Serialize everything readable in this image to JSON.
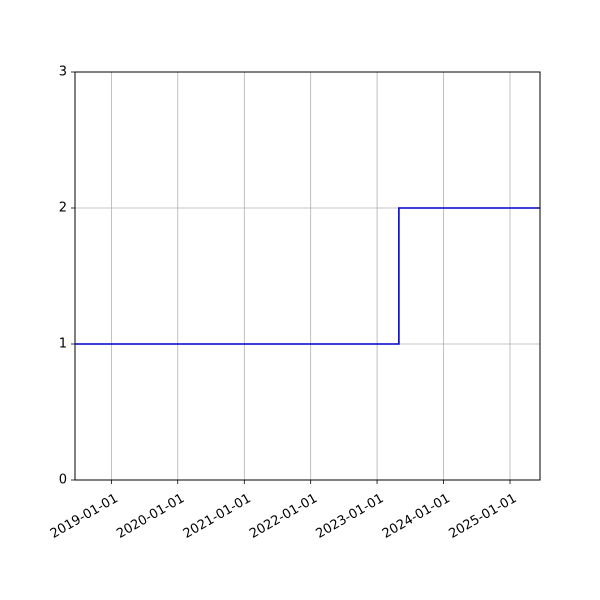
{
  "chart_data": {
    "type": "line",
    "drawstyle": "steps-post",
    "title": "",
    "xlabel": "",
    "ylabel": "",
    "x_axis_type": "date",
    "xlim": [
      "2018-06-15",
      "2025-06-15"
    ],
    "ylim": [
      0,
      3
    ],
    "grid": true,
    "x_ticks": [
      "2019-01-01",
      "2020-01-01",
      "2021-01-01",
      "2022-01-01",
      "2023-01-01",
      "2024-01-01",
      "2025-01-01"
    ],
    "y_ticks": [
      0,
      1,
      2,
      3
    ],
    "series": [
      {
        "color": "#0000cc",
        "x": [
          "2018-06-15",
          "2023-05-01",
          "2025-06-15"
        ],
        "y": [
          1,
          2,
          2
        ]
      }
    ]
  }
}
